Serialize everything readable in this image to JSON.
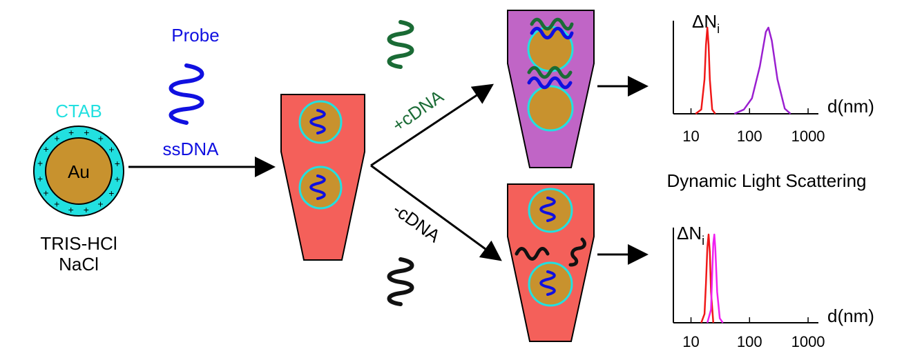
{
  "labels": {
    "probe": "Probe",
    "ctab": "CTAB",
    "au": "Au",
    "ssdna": "ssDNA",
    "buffer_line1": "TRIS-HCl",
    "buffer_line2": "NaCl",
    "plus_cdna": "+cDNA",
    "minus_cdna": "-cDNA",
    "dls": "Dynamic Light Scattering"
  },
  "colors": {
    "probe": "#1010e0",
    "ctab": "#22e0e0",
    "gold": "#c8922e",
    "tube_red": "#f4605a",
    "tube_purple": "#c065c6",
    "cdna": "#1a6b35",
    "mismatch": "#111111",
    "peak_red": "#f01818",
    "peak_violet": "#9a1fd0",
    "peak_magenta": "#f020f0"
  },
  "chart_data": [
    {
      "type": "line",
      "ylabel": "ΔN",
      "ylabel_sub": "i",
      "xlabel": "d(nm)",
      "x_scale": "log",
      "xlim": [
        5,
        1500
      ],
      "x_ticks": [
        "10",
        "100",
        "1000"
      ],
      "series": [
        {
          "color": "#f01818",
          "x": [
            12,
            15,
            17,
            18,
            19,
            20,
            21,
            23,
            26
          ],
          "y": [
            0,
            0.05,
            0.4,
            0.8,
            1.0,
            0.8,
            0.4,
            0.05,
            0
          ]
        },
        {
          "color": "#9a1fd0",
          "x": [
            55,
            80,
            110,
            150,
            190,
            210,
            240,
            300,
            400,
            500
          ],
          "y": [
            0,
            0.05,
            0.18,
            0.55,
            0.95,
            1.0,
            0.85,
            0.4,
            0.06,
            0
          ]
        }
      ]
    },
    {
      "type": "line",
      "ylabel": "ΔN",
      "ylabel_sub": "i",
      "xlabel": "d(nm)",
      "x_scale": "log",
      "xlim": [
        5,
        1500
      ],
      "x_ticks": [
        "10",
        "100",
        "1000"
      ],
      "series": [
        {
          "color": "#f01818",
          "x": [
            15,
            17,
            18,
            19,
            20,
            21,
            22,
            24
          ],
          "y": [
            0,
            0.1,
            0.45,
            0.85,
            1.0,
            0.8,
            0.35,
            0
          ]
        },
        {
          "color": "#f020f0",
          "x": [
            19,
            22,
            23,
            24,
            25,
            26,
            28,
            31,
            35
          ],
          "y": [
            0,
            0.15,
            0.55,
            0.9,
            1.0,
            0.85,
            0.35,
            0.05,
            0
          ]
        }
      ]
    }
  ]
}
